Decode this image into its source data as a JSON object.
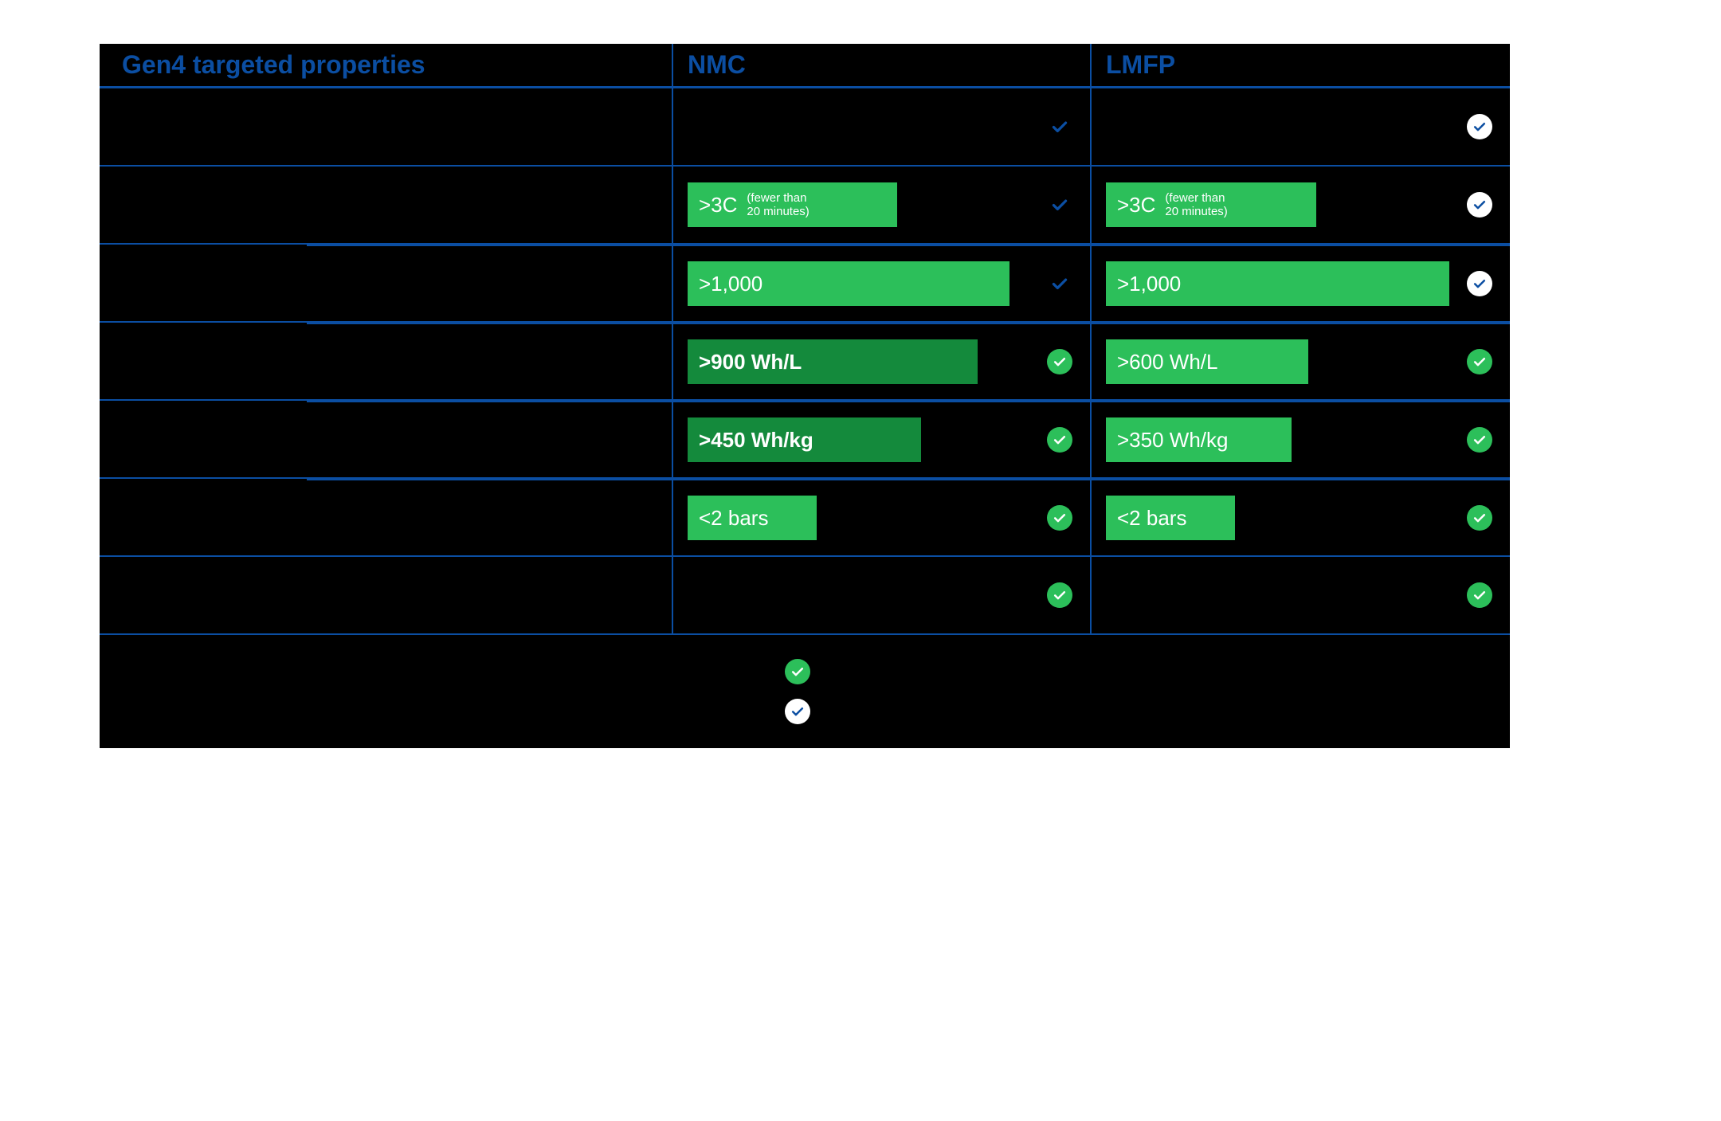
{
  "colors": {
    "background": "#000000",
    "page_bg": "#ffffff",
    "border": "#0b4ea2",
    "header_text": "#0b4ea2",
    "bar_light": "#2cbf5a",
    "bar_dark": "#148a3c",
    "check_green_bg": "#2cbf5a",
    "check_white_bg": "#ffffff",
    "check_blue_stroke": "#0b4ea2",
    "check_white_stroke": "#ffffff"
  },
  "header": {
    "title": "Gen4 targeted properties",
    "col1": "NMC",
    "col2": "LMFP"
  },
  "rows": [
    {
      "id": "temp",
      "type": "plain",
      "label": "",
      "nmc": {
        "check": "blue_plain"
      },
      "lmfp": {
        "check": "white_blue_circle"
      }
    },
    {
      "id": "charge",
      "type": "sub",
      "label": "",
      "nmc": {
        "bar_value": ">3C",
        "bar_sub": "(fewer than\n20 minutes)",
        "bar_width_pct": 52,
        "bar_color": "light",
        "check": "blue_plain"
      },
      "lmfp": {
        "bar_value": ">3C",
        "bar_sub": "(fewer than\n20 minutes)",
        "bar_width_pct": 52,
        "bar_color": "light",
        "check": "white_blue_circle"
      }
    },
    {
      "id": "cycles",
      "type": "sub",
      "label": "",
      "nmc": {
        "bar_value": ">1,000",
        "bar_width_pct": 80,
        "bar_color": "light",
        "check": "blue_plain"
      },
      "lmfp": {
        "bar_value": ">1,000",
        "bar_width_pct": 85,
        "bar_color": "light",
        "check": "white_blue_circle"
      }
    },
    {
      "id": "vol_density",
      "type": "sub",
      "label": "",
      "nmc": {
        "bar_value": ">900 Wh/L",
        "bar_width_pct": 72,
        "bar_color": "dark",
        "bold": true,
        "check": "green_circle"
      },
      "lmfp": {
        "bar_value": ">600 Wh/L",
        "bar_width_pct": 50,
        "bar_color": "light",
        "check": "green_circle"
      }
    },
    {
      "id": "grav_density",
      "type": "sub",
      "label": "",
      "nmc": {
        "bar_value": ">450 Wh/kg",
        "bar_width_pct": 58,
        "bar_color": "dark",
        "bold": true,
        "check": "green_circle"
      },
      "lmfp": {
        "bar_value": ">350 Wh/kg",
        "bar_width_pct": 46,
        "bar_color": "light",
        "check": "green_circle"
      }
    },
    {
      "id": "pressure",
      "type": "sub",
      "label": "",
      "nmc": {
        "bar_value": "<2 bars",
        "bar_width_pct": 32,
        "bar_color": "light",
        "check": "green_circle"
      },
      "lmfp": {
        "bar_value": "<2 bars",
        "bar_width_pct": 32,
        "bar_color": "light",
        "check": "green_circle"
      }
    },
    {
      "id": "cost",
      "type": "plain",
      "label": "",
      "nmc": {
        "check": "green_circle"
      },
      "lmfp": {
        "check": "green_circle"
      }
    }
  ],
  "legend": [
    {
      "id": "leg1",
      "check": "green_circle",
      "text": ""
    },
    {
      "id": "leg2",
      "check": "white_blue_circle",
      "text": ""
    }
  ]
}
